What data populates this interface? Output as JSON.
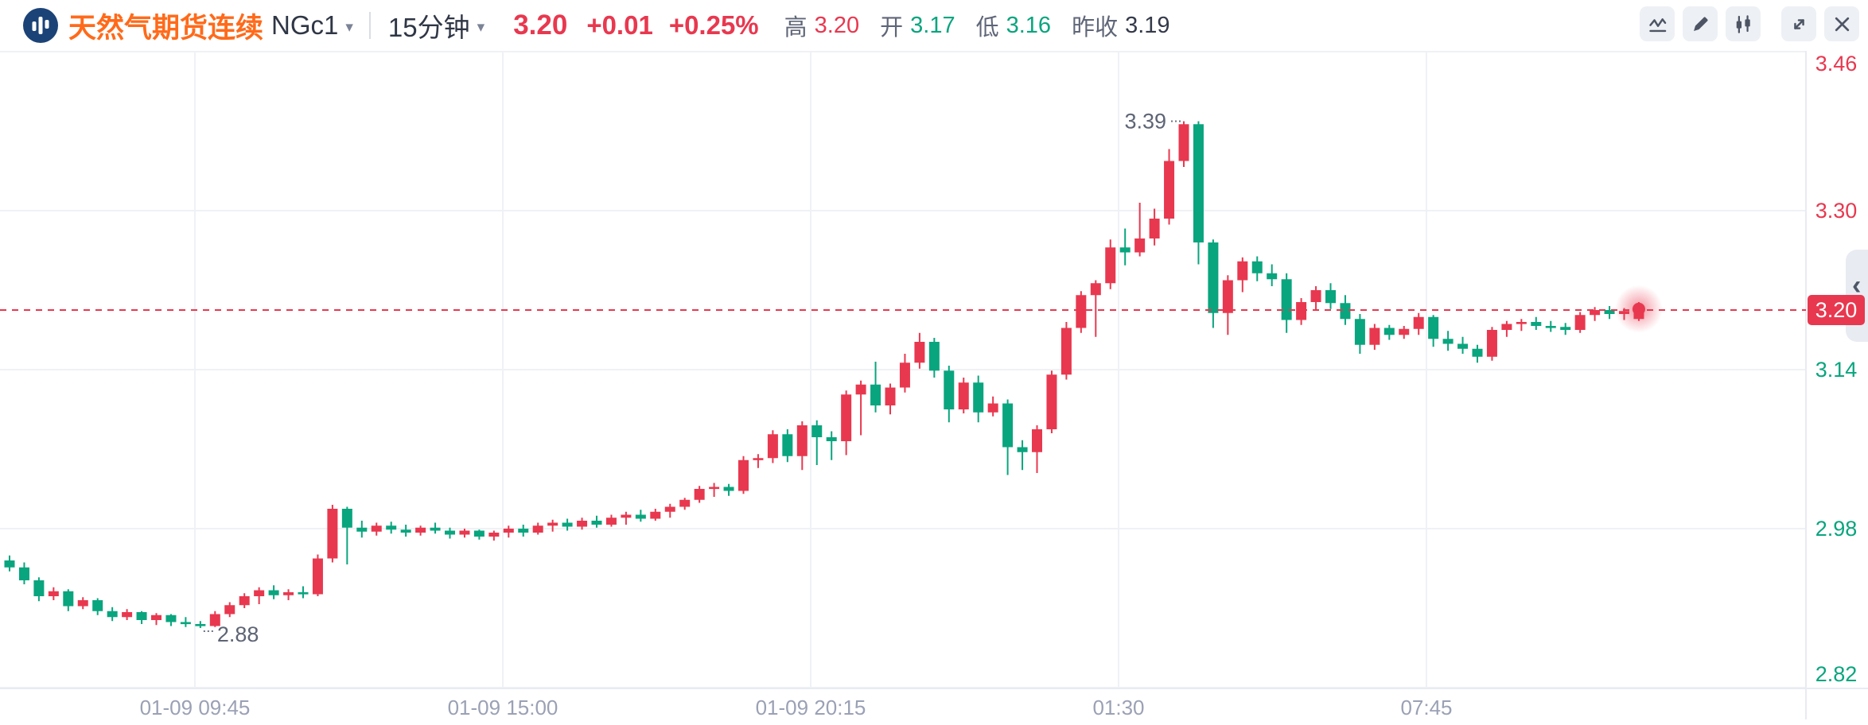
{
  "header": {
    "logo_icon": "volume-bars-icon",
    "instrument_name": "天然气期货连续",
    "symbol": "NGc1",
    "symbol_caret": "▾",
    "timeframe": "15分钟",
    "timeframe_caret": "▾",
    "last_price": "3.20",
    "change": "+0.01",
    "change_pct": "+0.25%",
    "stats": [
      {
        "label": "高",
        "value": "3.20",
        "tone": "up"
      },
      {
        "label": "开",
        "value": "3.17",
        "tone": "down"
      },
      {
        "label": "低",
        "value": "3.16",
        "tone": "down"
      },
      {
        "label": "昨收",
        "value": "3.19",
        "tone": "neutral"
      }
    ]
  },
  "toolbar": {
    "buttons": [
      {
        "icon": "indicator-line-icon",
        "name": "chart-style-button"
      },
      {
        "icon": "pencil-icon",
        "name": "drawing-tools-button"
      },
      {
        "icon": "candlestick-icon",
        "name": "candle-type-button"
      },
      {
        "icon": "expand-arrows-icon",
        "name": "fullscreen-button"
      },
      {
        "icon": "close-x-icon",
        "name": "close-chart-button"
      }
    ]
  },
  "chart_data": {
    "type": "candlestick",
    "timeframe_minutes": 15,
    "current_price": 3.2,
    "current_price_label": "3.20",
    "annotations": {
      "high_label": "3.39",
      "high_value": 3.39,
      "low_label": "2.88",
      "low_value": 2.88
    },
    "colors": {
      "up": "#e8384f",
      "down": "#09a57e",
      "grid": "#eff1f5",
      "axis_text_muted": "#9ba1b5",
      "annotation_text": "#5d6474",
      "separator": "#e9ebf2",
      "tab": "#e8ebf1",
      "chevron": "#4d5665"
    },
    "y_axis": {
      "ticks": [
        {
          "label": "3.46",
          "price": 3.46,
          "color": "#e8384f"
        },
        {
          "label": "3.30",
          "price": 3.3,
          "color": "#e8384f"
        },
        {
          "label": "3.14",
          "price": 3.14,
          "color": "#09a57e"
        },
        {
          "label": "2.98",
          "price": 2.98,
          "color": "#09a57e"
        },
        {
          "label": "2.82",
          "price": 2.82,
          "color": "#09a57e"
        }
      ]
    },
    "x_axis": {
      "labels": [
        "01-09 09:45",
        "01-09 15:00",
        "01-09 20:15",
        "01:30",
        "07:45"
      ]
    },
    "candles": [
      [
        2.948,
        2.953,
        2.937,
        2.941
      ],
      [
        2.941,
        2.946,
        2.924,
        2.928
      ],
      [
        2.928,
        2.931,
        2.907,
        2.912
      ],
      [
        2.912,
        2.921,
        2.908,
        2.917
      ],
      [
        2.917,
        2.919,
        2.897,
        2.902
      ],
      [
        2.902,
        2.911,
        2.899,
        2.908
      ],
      [
        2.908,
        2.91,
        2.893,
        2.897
      ],
      [
        2.897,
        2.901,
        2.887,
        2.891
      ],
      [
        2.891,
        2.899,
        2.888,
        2.896
      ],
      [
        2.896,
        2.897,
        2.884,
        2.888
      ],
      [
        2.888,
        2.895,
        2.883,
        2.893
      ],
      [
        2.893,
        2.894,
        2.882,
        2.886
      ],
      [
        2.886,
        2.891,
        2.881,
        2.884
      ],
      [
        2.884,
        2.887,
        2.88,
        2.882
      ],
      [
        2.882,
        2.897,
        2.881,
        2.894
      ],
      [
        2.894,
        2.906,
        2.891,
        2.903
      ],
      [
        2.903,
        2.915,
        2.9,
        2.912
      ],
      [
        2.912,
        2.921,
        2.904,
        2.918
      ],
      [
        2.918,
        2.923,
        2.909,
        2.913
      ],
      [
        2.913,
        2.919,
        2.908,
        2.916
      ],
      [
        2.916,
        2.922,
        2.91,
        2.914
      ],
      [
        2.914,
        2.954,
        2.912,
        2.95
      ],
      [
        2.95,
        3.004,
        2.946,
        3.0
      ],
      [
        3.0,
        3.002,
        2.944,
        2.981
      ],
      [
        2.981,
        2.988,
        2.971,
        2.977
      ],
      [
        2.977,
        2.986,
        2.973,
        2.983
      ],
      [
        2.983,
        2.987,
        2.975,
        2.979
      ],
      [
        2.979,
        2.984,
        2.972,
        2.976
      ],
      [
        2.976,
        2.983,
        2.973,
        2.981
      ],
      [
        2.981,
        2.986,
        2.975,
        2.978
      ],
      [
        2.978,
        2.981,
        2.97,
        2.974
      ],
      [
        2.974,
        2.98,
        2.971,
        2.978
      ],
      [
        2.978,
        2.979,
        2.969,
        2.972
      ],
      [
        2.972,
        2.978,
        2.968,
        2.976
      ],
      [
        2.976,
        2.983,
        2.971,
        2.98
      ],
      [
        2.98,
        2.984,
        2.972,
        2.976
      ],
      [
        2.976,
        2.986,
        2.974,
        2.983
      ],
      [
        2.983,
        2.989,
        2.977,
        2.986
      ],
      [
        2.986,
        2.99,
        2.978,
        2.982
      ],
      [
        2.982,
        2.991,
        2.979,
        2.988
      ],
      [
        2.988,
        2.993,
        2.981,
        2.984
      ],
      [
        2.984,
        2.994,
        2.982,
        2.991
      ],
      [
        2.991,
        2.997,
        2.984,
        2.994
      ],
      [
        2.994,
        2.999,
        2.987,
        2.99
      ],
      [
        2.99,
        3.0,
        2.988,
        2.997
      ],
      [
        2.997,
        3.005,
        2.991,
        3.002
      ],
      [
        3.002,
        3.011,
        2.999,
        3.009
      ],
      [
        3.009,
        3.023,
        3.006,
        3.02
      ],
      [
        3.02,
        3.026,
        3.012,
        3.022
      ],
      [
        3.022,
        3.025,
        3.013,
        3.018
      ],
      [
        3.018,
        3.053,
        3.015,
        3.049
      ],
      [
        3.049,
        3.055,
        3.041,
        3.051
      ],
      [
        3.051,
        3.079,
        3.046,
        3.075
      ],
      [
        3.075,
        3.08,
        3.047,
        3.053
      ],
      [
        3.053,
        3.088,
        3.039,
        3.084
      ],
      [
        3.084,
        3.089,
        3.044,
        3.072
      ],
      [
        3.072,
        3.078,
        3.049,
        3.068
      ],
      [
        3.068,
        3.119,
        3.054,
        3.115
      ],
      [
        3.115,
        3.129,
        3.074,
        3.125
      ],
      [
        3.125,
        3.148,
        3.097,
        3.104
      ],
      [
        3.104,
        3.126,
        3.095,
        3.122
      ],
      [
        3.122,
        3.156,
        3.117,
        3.147
      ],
      [
        3.147,
        3.177,
        3.141,
        3.168
      ],
      [
        3.168,
        3.172,
        3.132,
        3.139
      ],
      [
        3.139,
        3.144,
        3.087,
        3.1
      ],
      [
        3.1,
        3.132,
        3.096,
        3.127
      ],
      [
        3.127,
        3.134,
        3.087,
        3.097
      ],
      [
        3.097,
        3.113,
        3.093,
        3.106
      ],
      [
        3.106,
        3.11,
        3.034,
        3.062
      ],
      [
        3.062,
        3.069,
        3.039,
        3.057
      ],
      [
        3.057,
        3.084,
        3.036,
        3.08
      ],
      [
        3.08,
        3.139,
        3.076,
        3.135
      ],
      [
        3.135,
        3.188,
        3.13,
        3.182
      ],
      [
        3.182,
        3.219,
        3.177,
        3.215
      ],
      [
        3.215,
        3.23,
        3.173,
        3.227
      ],
      [
        3.227,
        3.271,
        3.221,
        3.263
      ],
      [
        3.263,
        3.282,
        3.245,
        3.258
      ],
      [
        3.258,
        3.308,
        3.254,
        3.272
      ],
      [
        3.272,
        3.302,
        3.265,
        3.292
      ],
      [
        3.292,
        3.362,
        3.286,
        3.35
      ],
      [
        3.35,
        3.39,
        3.344,
        3.387
      ],
      [
        3.387,
        3.39,
        3.246,
        3.268
      ],
      [
        3.268,
        3.271,
        3.182,
        3.197
      ],
      [
        3.197,
        3.235,
        3.175,
        3.23
      ],
      [
        3.23,
        3.253,
        3.218,
        3.249
      ],
      [
        3.249,
        3.254,
        3.229,
        3.237
      ],
      [
        3.237,
        3.246,
        3.224,
        3.231
      ],
      [
        3.231,
        3.237,
        3.177,
        3.19
      ],
      [
        3.19,
        3.212,
        3.185,
        3.208
      ],
      [
        3.208,
        3.224,
        3.2,
        3.22
      ],
      [
        3.22,
        3.227,
        3.201,
        3.207
      ],
      [
        3.207,
        3.215,
        3.185,
        3.191
      ],
      [
        3.191,
        3.196,
        3.156,
        3.165
      ],
      [
        3.165,
        3.186,
        3.16,
        3.182
      ],
      [
        3.182,
        3.185,
        3.17,
        3.175
      ],
      [
        3.175,
        3.184,
        3.171,
        3.181
      ],
      [
        3.181,
        3.197,
        3.175,
        3.193
      ],
      [
        3.193,
        3.195,
        3.163,
        3.171
      ],
      [
        3.171,
        3.179,
        3.159,
        3.166
      ],
      [
        3.166,
        3.173,
        3.156,
        3.161
      ],
      [
        3.161,
        3.165,
        3.147,
        3.153
      ],
      [
        3.153,
        3.183,
        3.149,
        3.18
      ],
      [
        3.18,
        3.189,
        3.173,
        3.186
      ],
      [
        3.186,
        3.191,
        3.179,
        3.188
      ],
      [
        3.188,
        3.193,
        3.18,
        3.184
      ],
      [
        3.184,
        3.189,
        3.178,
        3.183
      ],
      [
        3.183,
        3.187,
        3.175,
        3.18
      ],
      [
        3.18,
        3.198,
        3.177,
        3.195
      ],
      [
        3.195,
        3.203,
        3.189,
        3.2
      ],
      [
        3.2,
        3.204,
        3.191,
        3.196
      ],
      [
        3.196,
        3.202,
        3.19,
        3.199
      ],
      [
        3.191,
        3.208,
        3.189,
        3.201
      ]
    ]
  }
}
